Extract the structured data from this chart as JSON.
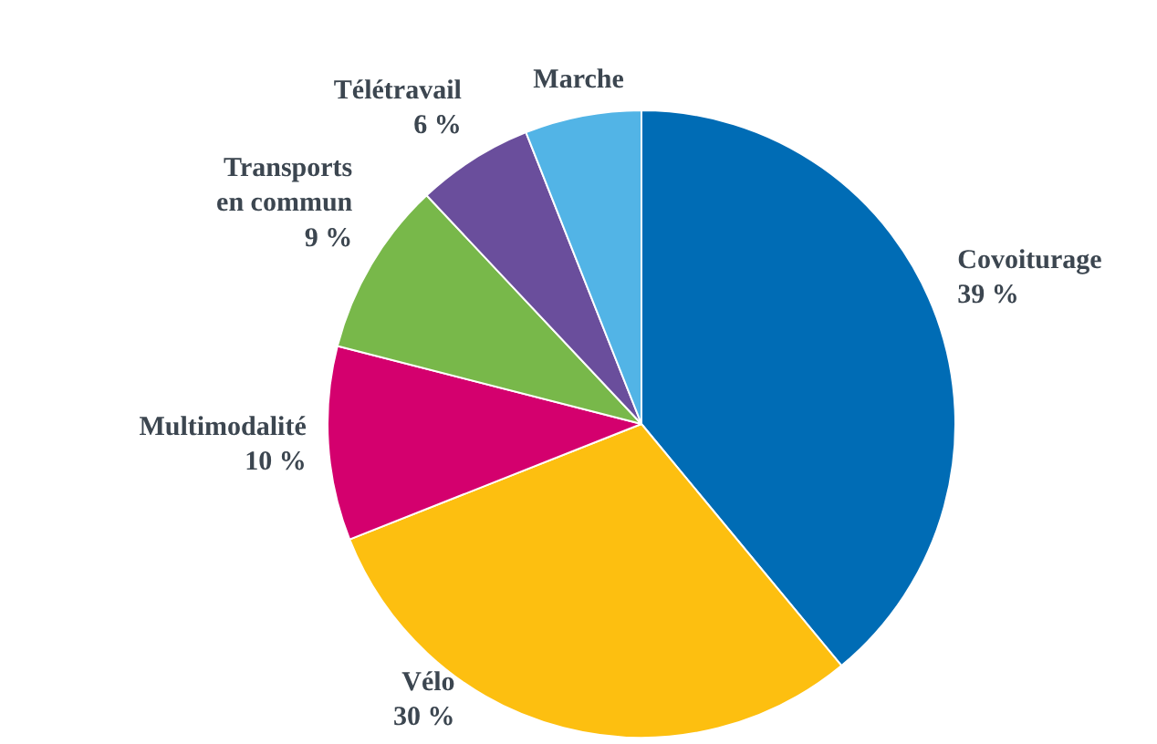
{
  "chart_data": {
    "type": "pie",
    "categories": [
      "Covoiturage",
      "Vélo",
      "Multimodalité",
      "Transports en commun",
      "Télétravail",
      "Marche"
    ],
    "values": [
      39,
      30,
      10,
      9,
      6,
      6
    ],
    "colors": [
      "#006cb5",
      "#fdbf10",
      "#d4006e",
      "#78b84a",
      "#6a4e9c",
      "#52b4e6"
    ],
    "value_labels": [
      "39 %",
      "30 %",
      "10 %",
      "9 %",
      "6 %",
      null
    ],
    "legend": false
  }
}
